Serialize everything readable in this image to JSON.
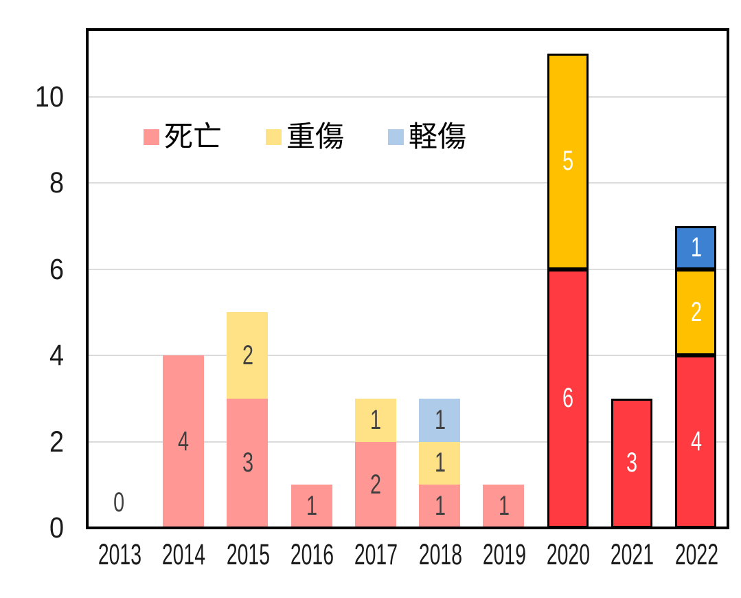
{
  "chart_data": {
    "type": "bar",
    "stacked": true,
    "title": "",
    "xlabel": "",
    "ylabel": "",
    "categories": [
      "2013",
      "2014",
      "2015",
      "2016",
      "2017",
      "2018",
      "2019",
      "2020",
      "2021",
      "2022"
    ],
    "series": [
      {
        "name": "死亡",
        "color": "#FF9794",
        "color_emphasis": "#FF3B41",
        "values": [
          0,
          4,
          3,
          1,
          2,
          1,
          1,
          6,
          3,
          4
        ]
      },
      {
        "name": "重傷",
        "color": "#FFE285",
        "color_emphasis": "#FFC000",
        "values": [
          0,
          0,
          2,
          0,
          1,
          1,
          0,
          5,
          0,
          2
        ]
      },
      {
        "name": "軽傷",
        "color": "#AECBE9",
        "color_emphasis": "#3D82D2",
        "values": [
          0,
          0,
          0,
          0,
          0,
          1,
          0,
          0,
          0,
          1
        ]
      }
    ],
    "data_labels": true,
    "emphasis_categories": [
      "2020",
      "2021",
      "2022"
    ],
    "zero_label_categories": [
      "2013"
    ],
    "yticks": [
      0,
      2,
      4,
      6,
      8,
      10
    ],
    "ylim": [
      0,
      11.55
    ],
    "grid": true,
    "legend_position": "top-left-inside",
    "colors": {
      "gridline": "#DBDBDB",
      "axis_frame": "#000000",
      "label_dark": "#404040",
      "label_light": "#FFFFFF",
      "tick_text": "#1a1a1a"
    }
  }
}
